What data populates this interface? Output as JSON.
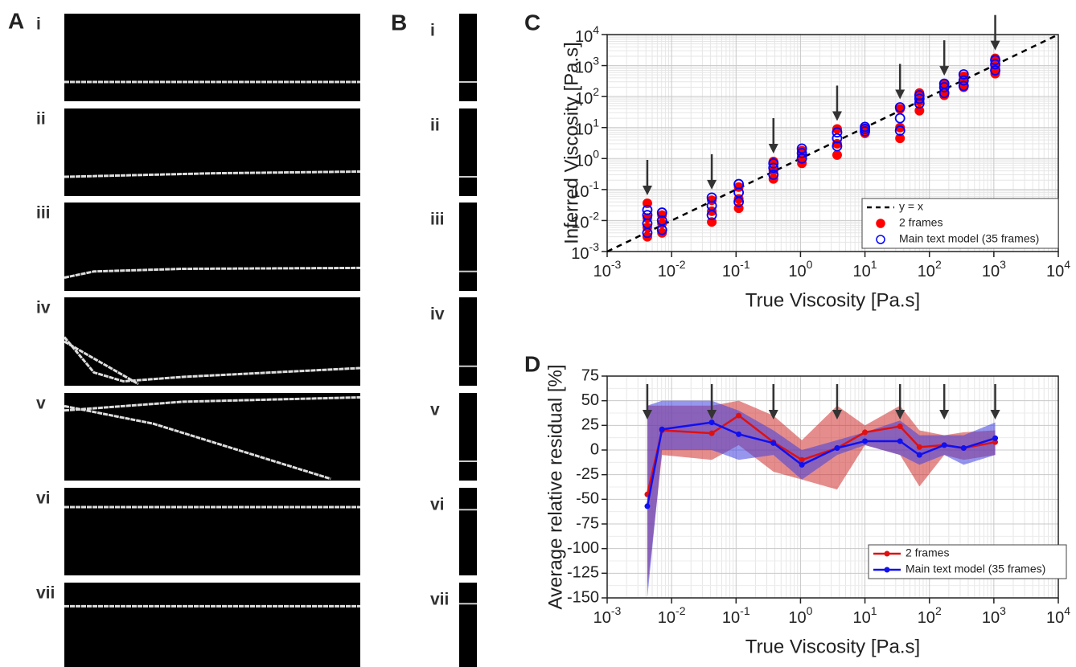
{
  "panels": {
    "A": {
      "label": "A",
      "rows": [
        "i",
        "ii",
        "iii",
        "iv",
        "v",
        "vi",
        "vii"
      ]
    },
    "B": {
      "label": "B",
      "rows": [
        "i",
        "ii",
        "iii",
        "iv",
        "v",
        "vi",
        "vii"
      ]
    }
  },
  "chart_data": [
    {
      "type": "scatter",
      "panel_label": "C",
      "x_label": "True Viscosity [Pa.s]",
      "y_label": "Inferred Viscosity [Pa.s]",
      "log_x": true,
      "log_y": true,
      "grid": true,
      "minor_grid": true,
      "legend": "lower right",
      "xlim": [
        0.001,
        10000
      ],
      "ylim": [
        0.001,
        10000
      ],
      "xticks": [
        {
          "value": 0.001,
          "label": "10",
          "exponent": "-3"
        },
        {
          "value": 0.01,
          "label": "10",
          "exponent": "-2"
        },
        {
          "value": 0.1,
          "label": "10",
          "exponent": "-1"
        },
        {
          "value": 1,
          "label": "10",
          "exponent": "0"
        },
        {
          "value": 10,
          "label": "10",
          "exponent": "1"
        },
        {
          "value": 100,
          "label": "10",
          "exponent": "2"
        },
        {
          "value": 1000,
          "label": "10",
          "exponent": "3"
        },
        {
          "value": 10000,
          "label": "10",
          "exponent": "4"
        }
      ],
      "yticks": [
        {
          "value": 0.001,
          "label": "10",
          "exponent": "-3"
        },
        {
          "value": 0.01,
          "label": "10",
          "exponent": "-2"
        },
        {
          "value": 0.1,
          "label": "10",
          "exponent": "-1"
        },
        {
          "value": 1,
          "label": "10",
          "exponent": "0"
        },
        {
          "value": 10,
          "label": "10",
          "exponent": "1"
        },
        {
          "value": 100,
          "label": "10",
          "exponent": "2"
        },
        {
          "value": 1000,
          "label": "10",
          "exponent": "3"
        },
        {
          "value": 10000,
          "label": "10",
          "exponent": "4"
        }
      ],
      "reference_line": {
        "name": "y = x",
        "color": "#000000"
      },
      "arrows_x": [
        0.0042,
        0.042,
        0.38,
        3.7,
        35,
        170,
        1050
      ],
      "series": [
        {
          "name": "2 frames",
          "color": "#ff0000",
          "marker": "filled",
          "x": [
            0.0042,
            0.0042,
            0.0042,
            0.0042,
            0.0071,
            0.0071,
            0.0071,
            0.042,
            0.042,
            0.042,
            0.11,
            0.11,
            0.11,
            0.38,
            0.38,
            0.38,
            1.05,
            1.05,
            1.05,
            3.7,
            3.7,
            3.7,
            10,
            10,
            10,
            35,
            35,
            35,
            70,
            70,
            70,
            170,
            170,
            170,
            340,
            340,
            340,
            1050,
            1050,
            1050
          ],
          "y": [
            0.003,
            0.006,
            0.012,
            0.036,
            0.004,
            0.008,
            0.015,
            0.009,
            0.02,
            0.045,
            0.025,
            0.05,
            0.12,
            0.22,
            0.4,
            0.8,
            0.7,
            1.2,
            1.8,
            1.3,
            3,
            9,
            6.5,
            8,
            9.5,
            4.5,
            10,
            40,
            35,
            70,
            130,
            110,
            180,
            250,
            200,
            300,
            450,
            550,
            900,
            1700
          ]
        },
        {
          "name": "Main text model (35 frames)",
          "color": "#0000ff",
          "marker": "open",
          "x": [
            0.0042,
            0.0042,
            0.0042,
            0.0042,
            0.0071,
            0.0071,
            0.0071,
            0.042,
            0.042,
            0.042,
            0.11,
            0.11,
            0.11,
            0.38,
            0.38,
            0.38,
            1.05,
            1.05,
            1.05,
            3.7,
            3.7,
            3.7,
            10,
            10,
            10,
            35,
            35,
            35,
            70,
            70,
            70,
            170,
            170,
            170,
            340,
            340,
            340,
            1050,
            1050,
            1050
          ],
          "y": [
            0.004,
            0.008,
            0.015,
            0.022,
            0.005,
            0.01,
            0.018,
            0.015,
            0.03,
            0.055,
            0.04,
            0.08,
            0.15,
            0.3,
            0.5,
            0.7,
            1.0,
            1.5,
            2.1,
            2.5,
            4.5,
            7,
            7.5,
            9,
            10.5,
            8,
            20,
            45,
            60,
            85,
            110,
            130,
            200,
            260,
            220,
            330,
            520,
            700,
            1100,
            1500
          ]
        }
      ]
    },
    {
      "type": "line",
      "panel_label": "D",
      "x_label": "True Viscosity [Pa.s]",
      "y_label": "Average relative residual [%]",
      "log_x": true,
      "grid": true,
      "minor_grid": true,
      "legend": "lower right",
      "xlim": [
        0.001,
        10000
      ],
      "ylim": [
        -150,
        75
      ],
      "xticks": [
        {
          "value": 0.001,
          "label": "10",
          "exponent": "-3"
        },
        {
          "value": 0.01,
          "label": "10",
          "exponent": "-2"
        },
        {
          "value": 0.1,
          "label": "10",
          "exponent": "-1"
        },
        {
          "value": 1,
          "label": "10",
          "exponent": "0"
        },
        {
          "value": 10,
          "label": "10",
          "exponent": "1"
        },
        {
          "value": 100,
          "label": "10",
          "exponent": "2"
        },
        {
          "value": 1000,
          "label": "10",
          "exponent": "3"
        },
        {
          "value": 10000,
          "label": "10",
          "exponent": "4"
        }
      ],
      "yticks": [
        -150,
        -125,
        -100,
        -75,
        -50,
        -25,
        0,
        25,
        50,
        75
      ],
      "arrows_x": [
        0.0042,
        0.042,
        0.38,
        3.7,
        35,
        170,
        1050
      ],
      "x": [
        0.0042,
        0.0071,
        0.042,
        0.11,
        0.38,
        1.05,
        3.7,
        10,
        35,
        70,
        170,
        340,
        1050
      ],
      "series": [
        {
          "name": "2 frames",
          "color": "#e01010",
          "band_color": "#d03030",
          "values": [
            -45,
            20,
            17,
            35,
            8,
            -10,
            2,
            18,
            24,
            3,
            5,
            2,
            8
          ],
          "band_lower": [
            -140,
            -5,
            -10,
            5,
            -22,
            -30,
            -40,
            5,
            -5,
            -37,
            -5,
            -10,
            -5
          ],
          "band_upper": [
            45,
            45,
            45,
            50,
            35,
            10,
            45,
            25,
            45,
            20,
            15,
            18,
            20
          ]
        },
        {
          "name": "Main text model (35 frames)",
          "color": "#1010f0",
          "band_color": "#4040e0",
          "values": [
            -57,
            21,
            28,
            16,
            7,
            -15,
            2,
            9,
            9,
            -5,
            5,
            2,
            12
          ],
          "band_lower": [
            -150,
            0,
            0,
            -10,
            -5,
            -30,
            -5,
            5,
            -5,
            -15,
            -5,
            -15,
            -5
          ],
          "band_upper": [
            45,
            50,
            50,
            40,
            20,
            0,
            10,
            18,
            30,
            15,
            15,
            15,
            28
          ]
        }
      ]
    }
  ]
}
